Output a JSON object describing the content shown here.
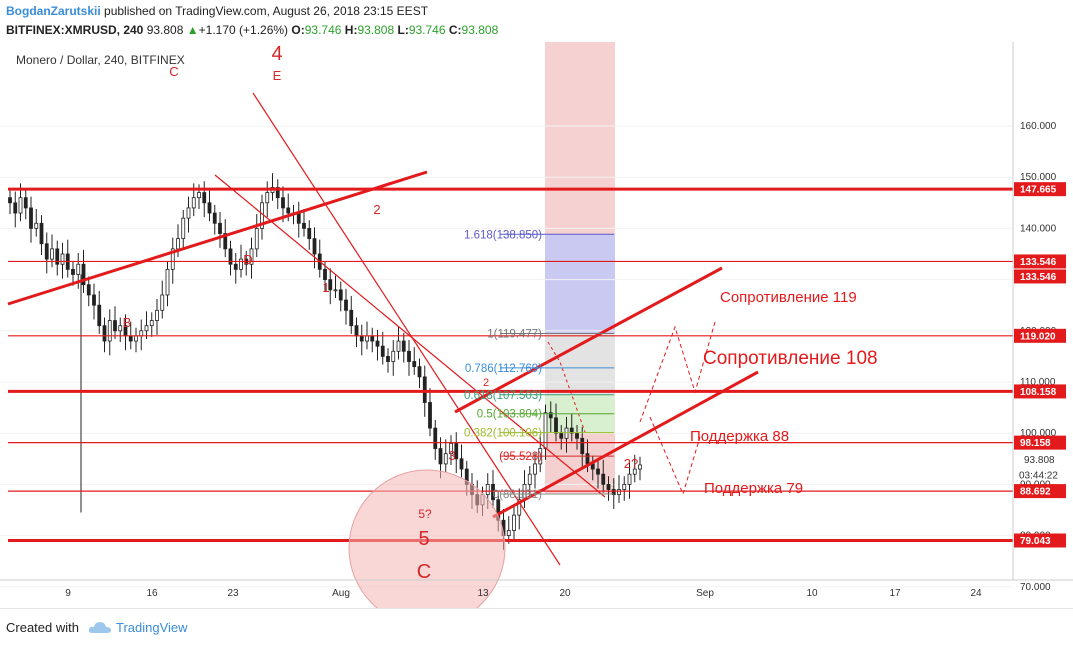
{
  "header": {
    "author": "BogdanZarutskii",
    "published_text": " published on TradingView.com, August 26, 2018 23:15 EEST",
    "ticker": "BITFINEX:XMRUSD, 240",
    "last": "93.808",
    "change": "+1.170 (+1.26%)",
    "o_label": "O:",
    "o": "93.746",
    "h_label": "H:",
    "h": "93.808",
    "l_label": "L:",
    "l": "93.746",
    "c_label": "C:",
    "c": "93.808"
  },
  "footer": {
    "created_with": "Created with",
    "brand": "TradingView"
  },
  "colors": {
    "red": "#e31a1c",
    "blue_link": "#3a8dd8",
    "up": "#2ca02c"
  },
  "chart_data": {
    "type": "candlestick",
    "symbol_title": "Monero / Dollar, 240, BITFINEX",
    "ylim": [
      65,
      162
    ],
    "y_ticks": [
      70,
      80,
      90,
      100,
      110,
      120,
      130,
      140,
      150,
      160
    ],
    "y_tick_labels": [
      "70.000",
      "80.000",
      "90.000",
      "100.000",
      "110.000",
      "120.000",
      "130.000",
      "140.000",
      "150.000",
      "160.000"
    ],
    "x_ticks": [
      "9",
      "16",
      "23",
      "Aug",
      "13",
      "20",
      "Sep",
      "10",
      "17",
      "24"
    ],
    "current_price": "93.808",
    "countdown": "03:44:22",
    "horizontal_levels": [
      {
        "label": "147.665",
        "value": 147.665,
        "thick": true
      },
      {
        "label": "133.546",
        "value": 133.546,
        "thick": false
      },
      {
        "label": "119.020",
        "value": 119.02,
        "thick": false
      },
      {
        "label": "108.158",
        "value": 108.158,
        "thick": true
      },
      {
        "label": "98.158",
        "value": 98.158,
        "thick": false
      },
      {
        "label": "88.692",
        "value": 88.692,
        "thick": false
      },
      {
        "label": "79.043",
        "value": 79.043,
        "thick": true
      }
    ],
    "extra_tag": "133.546",
    "fib_levels": [
      {
        "label": "1.618(138.850)",
        "value": 138.85,
        "color": "#5c5cc8"
      },
      {
        "label": "1(119.477)",
        "value": 119.477,
        "color": "#777777"
      },
      {
        "label": "0.786(112.769)",
        "value": 112.769,
        "color": "#3a8dd8"
      },
      {
        "label": "0.618(107.503)",
        "value": 107.503,
        "color": "#3aa07a"
      },
      {
        "label": "0.5(103.804)",
        "value": 103.804,
        "color": "#55a630"
      },
      {
        "label": "0.382(100.106)",
        "value": 100.106,
        "color": "#9dbb2a"
      },
      {
        "label": "(95.528)",
        "value": 95.528,
        "color": "#d62728"
      },
      {
        "label": "0(88.131)",
        "value": 88.131,
        "color": "#888888"
      }
    ],
    "annotations": [
      {
        "text": "Сопротивление 119",
        "value": 115.0
      },
      {
        "text": "Сопротивление 108",
        "value": 103.5
      },
      {
        "text": "Поддержка 88",
        "value": 89.0
      },
      {
        "text": "Поддержка 79",
        "value": 77.5
      }
    ],
    "wave_labels": [
      "4",
      "E",
      "C",
      "B",
      "D",
      "2",
      "1",
      "3",
      "5?",
      "5",
      "C",
      "2?",
      "2"
    ],
    "candles_close": [
      145,
      143,
      146,
      144,
      140,
      141,
      137,
      134,
      136,
      133,
      135,
      132,
      131,
      133,
      129,
      127,
      125,
      121,
      118,
      122,
      120,
      121,
      119,
      118,
      119,
      120,
      121,
      122,
      124,
      127,
      132,
      136,
      138,
      142,
      144,
      146,
      147,
      145,
      143,
      141,
      139,
      136,
      133,
      132,
      134,
      133,
      136,
      140,
      145,
      147,
      148,
      146,
      144,
      143,
      143,
      141,
      140,
      138,
      135,
      132,
      130,
      128,
      128,
      126,
      124,
      121,
      119,
      118,
      119,
      118,
      117,
      115,
      114,
      116,
      118,
      116,
      114,
      113,
      111,
      106,
      101,
      97,
      94,
      96,
      98,
      95,
      93,
      90,
      88,
      86,
      88,
      90,
      87,
      83,
      80,
      81,
      84,
      87,
      90,
      92,
      94,
      97,
      104,
      103,
      100,
      99,
      101,
      100,
      99,
      96,
      94,
      93,
      92,
      90,
      89,
      88,
      89,
      90,
      92,
      93,
      93.8
    ]
  }
}
